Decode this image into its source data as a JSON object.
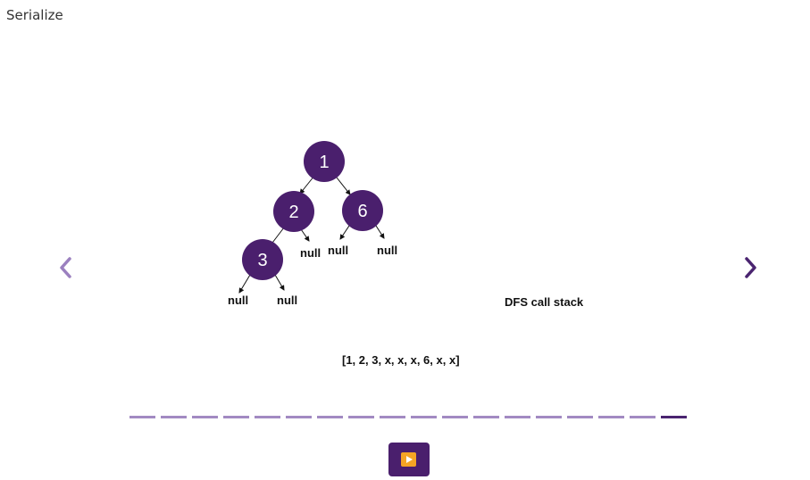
{
  "title": "Serialize",
  "nav": {
    "prev_icon": "chevron-left-icon",
    "next_icon": "chevron-right-icon",
    "prev_color": "#9b80bf",
    "next_color": "#4a2470"
  },
  "tree": {
    "node_color": "#4a1f6d",
    "nodes": [
      {
        "id": "n1",
        "label": "1"
      },
      {
        "id": "n2",
        "label": "2"
      },
      {
        "id": "n6",
        "label": "6"
      },
      {
        "id": "n3",
        "label": "3"
      }
    ],
    "null_label": "null"
  },
  "call_stack_label": "DFS call stack",
  "serialized_output": "[1, 2, 3, x, x, x, 6, x, x]",
  "progress": {
    "total_steps": 18,
    "current_step": 18,
    "active_color": "#4a2470",
    "inactive_color": "#a28ac2"
  },
  "play_button": {
    "icon": "play-icon",
    "bg_color": "#4a1f6d",
    "icon_color": "#f5a424"
  }
}
